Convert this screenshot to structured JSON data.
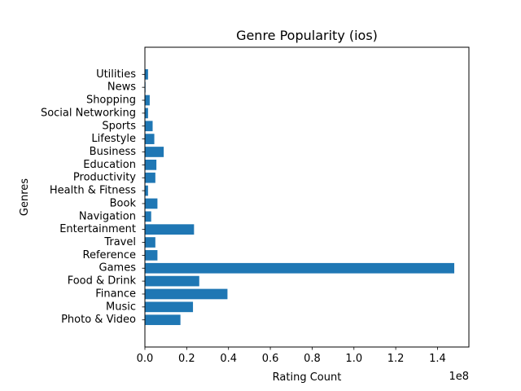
{
  "chart_data": {
    "type": "bar",
    "orientation": "horizontal",
    "title": "Genre Popularity (ios)",
    "xlabel": "Rating Count",
    "ylabel": "Genres",
    "x_offset_label": "1e8",
    "x_scale": 100000000,
    "xlim": [
      0,
      155000000
    ],
    "x_ticks": [
      0,
      20000000,
      40000000,
      60000000,
      80000000,
      100000000,
      120000000,
      140000000
    ],
    "x_tick_labels": [
      "0.0",
      "0.2",
      "0.4",
      "0.6",
      "0.8",
      "1.0",
      "1.2",
      "1.4"
    ],
    "grid": false,
    "bar_color": "#1f77b4",
    "categories": [
      "Photo & Video",
      "Music",
      "Finance",
      "Food & Drink",
      "Games",
      "Reference",
      "Travel",
      "Entertainment",
      "Navigation",
      "Book",
      "Health & Fitness",
      "Productivity",
      "Education",
      "Business",
      "Lifestyle",
      "Sports",
      "Social Networking",
      "Shopping",
      "News",
      "Utilities"
    ],
    "values": [
      17000000,
      23000000,
      39500000,
      26000000,
      148000000,
      6000000,
      5000000,
      23500000,
      3000000,
      6000000,
      1500000,
      5000000,
      5500000,
      9000000,
      4500000,
      3700000,
      1500000,
      2300000,
      300000,
      1500000
    ]
  }
}
